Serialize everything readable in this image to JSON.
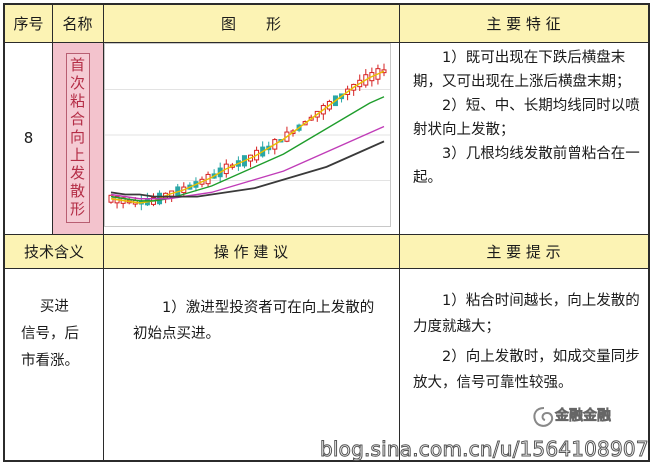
{
  "header_row": {
    "col1": "序号",
    "col2": "名称",
    "col3": "图　　形",
    "col4": "主 要 特 征"
  },
  "row1": {
    "number": "8",
    "name": "首次粘合向上发散形",
    "features": [
      "1）既可出现在下跌后横盘末期，又可出现在上涨后横盘末期；",
      "2）短、中、长期均线同时以喷射状向上发散；",
      "3）几根均线发散前曾粘合在一起。"
    ]
  },
  "header_row2": {
    "col1": "技术含义",
    "col2": "操 作 建 议",
    "col3": "主 要 提 示"
  },
  "row2": {
    "meaning": "买进信号，后市看涨。",
    "advice": "1）激进型投资者可在向上发散的初始点买进。",
    "tips": [
      "1）粘合时间越长，向上发散的力度就越大；",
      "2）向上发散时，如成交量同步放大，信号可靠性较强。"
    ]
  },
  "watermark": {
    "url": "blog.sina.com.cn/u/1564108907",
    "logo": "金融金融"
  },
  "chart_data": {
    "type": "line",
    "series": [
      {
        "values": [
          40,
          39,
          38,
          39,
          42,
          44,
          47,
          50,
          54,
          57,
          60,
          64,
          68,
          73,
          78,
          83,
          88,
          93,
          97,
          100
        ]
      },
      {
        "values": [
          41,
          40,
          39,
          39,
          40,
          42,
          44,
          46,
          49,
          52,
          55,
          58,
          61,
          65,
          69,
          73,
          77,
          81,
          85,
          88
        ]
      },
      {
        "values": [
          42,
          41,
          40,
          40,
          40,
          41,
          42,
          43,
          45,
          47,
          49,
          51,
          53,
          56,
          59,
          62,
          65,
          68,
          71,
          74
        ]
      },
      {
        "values": [
          43,
          42,
          42,
          41,
          41,
          41,
          41,
          42,
          43,
          44,
          45,
          47,
          49,
          51,
          53,
          55,
          58,
          61,
          64,
          67
        ]
      }
    ],
    "colors": [
      "#e8c000",
      "#1f9d2c",
      "#c03cb8",
      "#3a3a3a"
    ],
    "candle_up_color": "#d62020",
    "candle_down_color": "#2aa6a6",
    "ylim": [
      30,
      110
    ],
    "grid": true
  }
}
